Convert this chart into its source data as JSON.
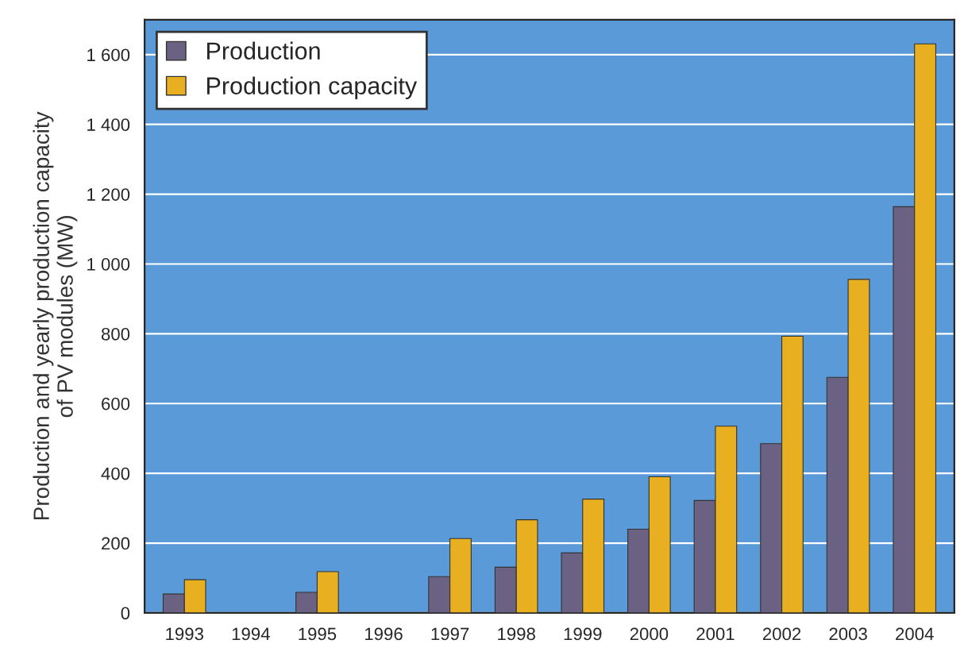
{
  "chart_data": {
    "type": "bar",
    "ylabel": "Production and yearly production capacity\nof PV modules (MW)",
    "categories": [
      "1993",
      "1994",
      "1995",
      "1996",
      "1997",
      "1998",
      "1999",
      "2000",
      "2001",
      "2002",
      "2003",
      "2004"
    ],
    "series": [
      {
        "name": "Production",
        "color": "#6b6283",
        "values": [
          54,
          null,
          59,
          null,
          104,
          131,
          172,
          240,
          322,
          485,
          675,
          1164
        ]
      },
      {
        "name": "Production capacity",
        "color": "#e8b020",
        "values": [
          95,
          null,
          118,
          null,
          213,
          267,
          326,
          390,
          535,
          793,
          956,
          1631
        ]
      }
    ],
    "ylim": [
      0,
      1700
    ],
    "yticks": [
      0,
      200,
      400,
      600,
      800,
      {
        "value": 1000,
        "label": "1 000"
      },
      {
        "value": 1200,
        "label": "1 200"
      },
      {
        "value": 1400,
        "label": "1 400"
      },
      {
        "value": 1600,
        "label": "1 600"
      }
    ],
    "grid": "y",
    "legend": "top left"
  }
}
